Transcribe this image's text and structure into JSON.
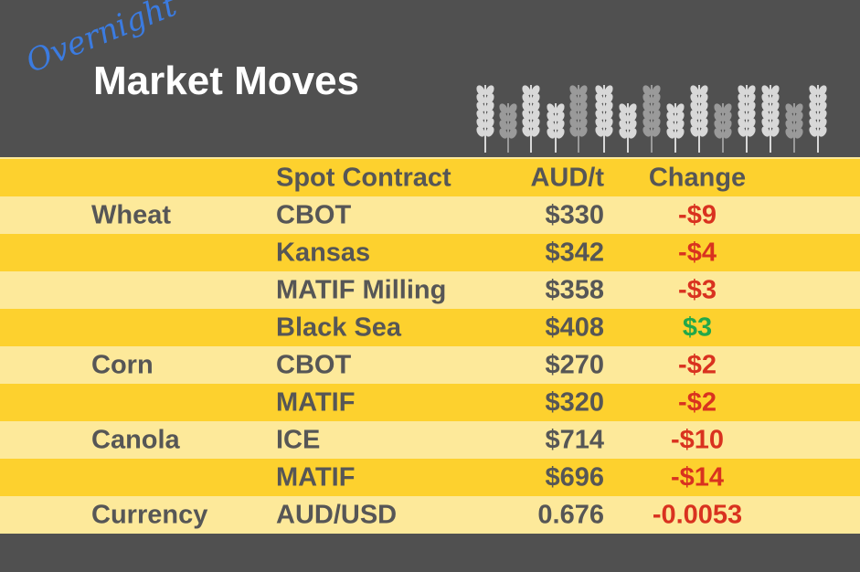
{
  "header": {
    "tag": "Overnight",
    "title": "Market Moves"
  },
  "table": {
    "columns": [
      "Spot Contract",
      "AUD/t",
      "Change"
    ],
    "rows": [
      {
        "group": "Wheat",
        "contract": "CBOT",
        "price": "$330",
        "change": "-$9"
      },
      {
        "contract": "Kansas",
        "price": "$342",
        "change": "-$4"
      },
      {
        "contract": "MATIF Milling",
        "price": "$358",
        "change": "-$3"
      },
      {
        "contract": "Black Sea",
        "price": "$408",
        "change": "$3"
      },
      {
        "group": "Corn",
        "contract": "CBOT",
        "price": "$270",
        "change": "-$2"
      },
      {
        "contract": "MATIF",
        "price": "$320",
        "change": "-$2"
      },
      {
        "group": "Canola",
        "contract": "ICE",
        "price": "$714",
        "change": "-$10"
      },
      {
        "contract": "MATIF",
        "price": "$696",
        "change": "-$14"
      },
      {
        "group": "Currency",
        "contract": "AUD/USD",
        "price": "0.676",
        "change": "-0.0053"
      }
    ]
  }
}
